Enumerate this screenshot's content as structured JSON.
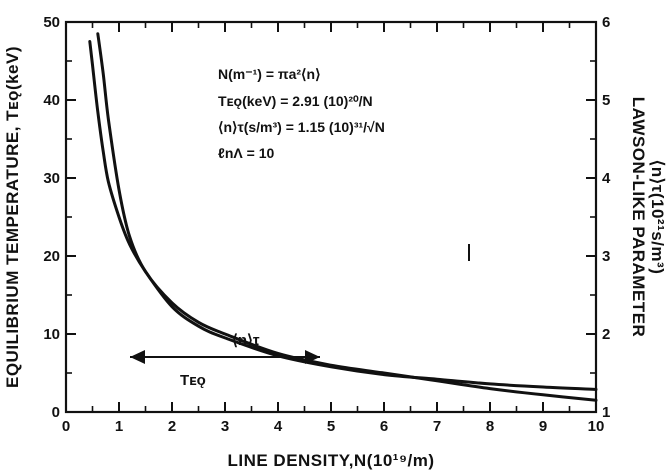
{
  "chart_data": {
    "type": "line",
    "title": "",
    "xlabel": "LINE DENSITY,N(10¹⁹/m)",
    "ylabel_left": "EQUILIBRIUM TEMPERATURE, Tᴇǫ(keV)",
    "ylabel_right_line1": "LAWSON-LIKE PARAMETER",
    "ylabel_right_line2": "⟨n⟩τ(10²¹s/m³)",
    "xlim": [
      0,
      10
    ],
    "ylim_left": [
      0,
      50
    ],
    "ylim_right": [
      1,
      6
    ],
    "x_ticks": [
      "0",
      "1",
      "2",
      "3",
      "4",
      "5",
      "6",
      "7",
      "8",
      "9",
      "10"
    ],
    "y_left_ticks": [
      "0",
      "10",
      "20",
      "30",
      "40",
      "50"
    ],
    "y_right_ticks": [
      "1",
      "2",
      "3",
      "4",
      "5",
      "6"
    ],
    "grid": false,
    "series": [
      {
        "name": "Tᴇǫ",
        "axis": "left",
        "x": [
          0.45,
          0.5,
          0.6,
          0.7,
          0.8,
          1.0,
          1.2,
          1.5,
          2.0,
          2.5,
          3.0,
          4.0,
          5.0,
          6.0,
          7.0,
          8.0,
          9.0,
          10.0
        ],
        "values": [
          47.5,
          44.5,
          38.5,
          33.5,
          29.5,
          25.0,
          21.5,
          18.0,
          13.5,
          11.0,
          9.5,
          7.2,
          5.8,
          4.8,
          4.2,
          3.6,
          3.2,
          2.9
        ]
      },
      {
        "name": "⟨n⟩τ",
        "axis": "right",
        "x": [
          0.6,
          0.7,
          0.8,
          1.0,
          1.2,
          1.5,
          2.0,
          2.5,
          3.0,
          4.0,
          5.0,
          6.0,
          7.0,
          8.0,
          9.0,
          10.0
        ],
        "values": [
          5.85,
          5.35,
          4.75,
          3.85,
          3.25,
          2.8,
          2.4,
          2.15,
          2.0,
          1.75,
          1.6,
          1.5,
          1.4,
          1.3,
          1.22,
          1.15
        ]
      }
    ],
    "annotations": {
      "eq1": "N(m⁻¹) = πa²⟨n⟩",
      "eq2": "Tᴇǫ(keV) = 2.91 (10)²⁰/N",
      "eq3": "⟨n⟩τ(s/m³) = 1.15 (10)³¹/√N",
      "eq4": "ℓnΛ = 10",
      "curve_label_ntau": "⟨n⟩τ",
      "curve_label_teq": "Tᴇǫ"
    }
  }
}
